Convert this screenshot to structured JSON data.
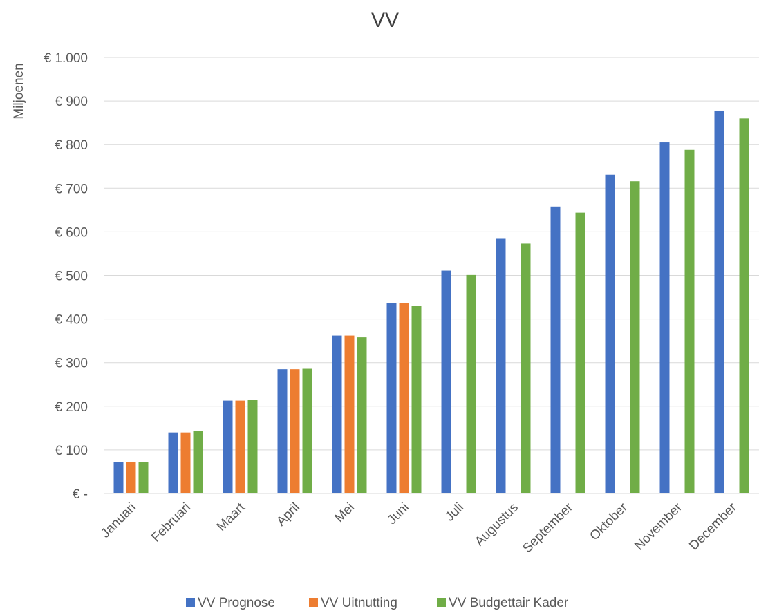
{
  "chart_data": {
    "type": "bar",
    "title": "VV",
    "xlabel": "",
    "ylabel": "Miljoenen",
    "ylim": [
      0,
      1000
    ],
    "grid": true,
    "legend_position": "bottom",
    "y_ticks": [
      {
        "value": 0,
        "label": "€ -"
      },
      {
        "value": 100,
        "label": "€ 100"
      },
      {
        "value": 200,
        "label": "€ 200"
      },
      {
        "value": 300,
        "label": "€ 300"
      },
      {
        "value": 400,
        "label": "€ 400"
      },
      {
        "value": 500,
        "label": "€ 500"
      },
      {
        "value": 600,
        "label": "€ 600"
      },
      {
        "value": 700,
        "label": "€ 700"
      },
      {
        "value": 800,
        "label": "€ 800"
      },
      {
        "value": 900,
        "label": "€ 900"
      },
      {
        "value": 1000,
        "label": "€ 1.000"
      }
    ],
    "categories": [
      "Januari",
      "Februari",
      "Maart",
      "April",
      "Mei",
      "Juni",
      "Juli",
      "Augustus",
      "September",
      "Oktober",
      "November",
      "December"
    ],
    "series": [
      {
        "name": "VV Prognose",
        "color": "#4472c4",
        "values": [
          72,
          140,
          213,
          285,
          362,
          437,
          511,
          584,
          658,
          731,
          805,
          878
        ]
      },
      {
        "name": "VV Uitnutting",
        "color": "#ed7d31",
        "values": [
          72,
          140,
          213,
          285,
          362,
          437,
          null,
          null,
          null,
          null,
          null,
          null
        ]
      },
      {
        "name": "VV Budgettair Kader",
        "color": "#70ad47",
        "values": [
          72,
          143,
          215,
          286,
          358,
          430,
          501,
          573,
          644,
          716,
          788,
          860
        ]
      }
    ]
  }
}
